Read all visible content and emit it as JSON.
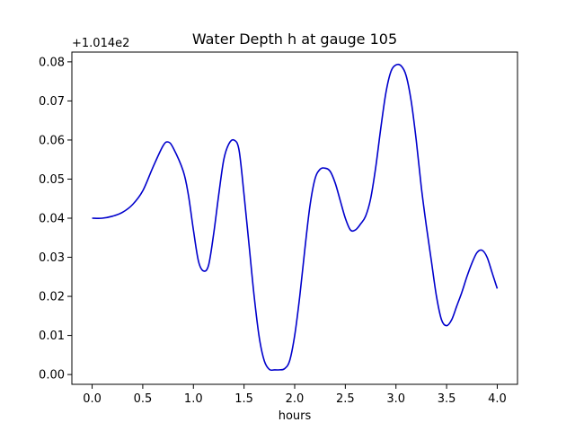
{
  "chart_data": {
    "type": "line",
    "title": "Water Depth h at gauge 105",
    "xlabel": "hours",
    "ylabel": "",
    "y_offset_label": "+1.014e2",
    "xlim": [
      -0.2,
      4.2
    ],
    "ylim": [
      -0.0025,
      0.0825
    ],
    "x_ticks": [
      0.0,
      0.5,
      1.0,
      1.5,
      2.0,
      2.5,
      3.0,
      3.5,
      4.0
    ],
    "x_tick_labels": [
      "0.0",
      "0.5",
      "1.0",
      "1.5",
      "2.0",
      "2.5",
      "3.0",
      "3.5",
      "4.0"
    ],
    "y_ticks": [
      0.0,
      0.01,
      0.02,
      0.03,
      0.04,
      0.05,
      0.06,
      0.07,
      0.08
    ],
    "y_tick_labels": [
      "0.00",
      "0.01",
      "0.02",
      "0.03",
      "0.04",
      "0.05",
      "0.06",
      "0.07",
      "0.08"
    ],
    "grid": false,
    "series": [
      {
        "color": "#0000cc",
        "x": [
          0.0,
          0.1,
          0.2,
          0.3,
          0.4,
          0.5,
          0.6,
          0.7,
          0.75,
          0.8,
          0.9,
          0.95,
          1.0,
          1.05,
          1.1,
          1.15,
          1.2,
          1.25,
          1.3,
          1.35,
          1.4,
          1.45,
          1.5,
          1.55,
          1.6,
          1.65,
          1.7,
          1.75,
          1.8,
          1.85,
          1.9,
          1.95,
          2.0,
          2.05,
          2.1,
          2.15,
          2.2,
          2.25,
          2.3,
          2.35,
          2.4,
          2.45,
          2.5,
          2.55,
          2.6,
          2.65,
          2.7,
          2.75,
          2.8,
          2.85,
          2.9,
          2.95,
          3.0,
          3.05,
          3.1,
          3.15,
          3.2,
          3.25,
          3.3,
          3.35,
          3.4,
          3.45,
          3.5,
          3.55,
          3.6,
          3.65,
          3.7,
          3.75,
          3.8,
          3.85,
          3.9,
          3.95,
          4.0
        ],
        "y": [
          0.04,
          0.04,
          0.0405,
          0.0415,
          0.0435,
          0.047,
          0.053,
          0.0585,
          0.0595,
          0.058,
          0.052,
          0.046,
          0.037,
          0.029,
          0.0265,
          0.028,
          0.036,
          0.046,
          0.055,
          0.059,
          0.06,
          0.0575,
          0.046,
          0.033,
          0.02,
          0.0095,
          0.0035,
          0.0013,
          0.0012,
          0.0012,
          0.0015,
          0.0035,
          0.01,
          0.02,
          0.032,
          0.043,
          0.05,
          0.0525,
          0.0528,
          0.052,
          0.049,
          0.0445,
          0.04,
          0.037,
          0.037,
          0.0385,
          0.0405,
          0.045,
          0.053,
          0.063,
          0.072,
          0.0775,
          0.0792,
          0.079,
          0.0765,
          0.07,
          0.06,
          0.048,
          0.038,
          0.029,
          0.02,
          0.014,
          0.0125,
          0.014,
          0.0175,
          0.021,
          0.025,
          0.0285,
          0.0312,
          0.0318,
          0.03,
          0.026,
          0.022
        ]
      }
    ]
  }
}
